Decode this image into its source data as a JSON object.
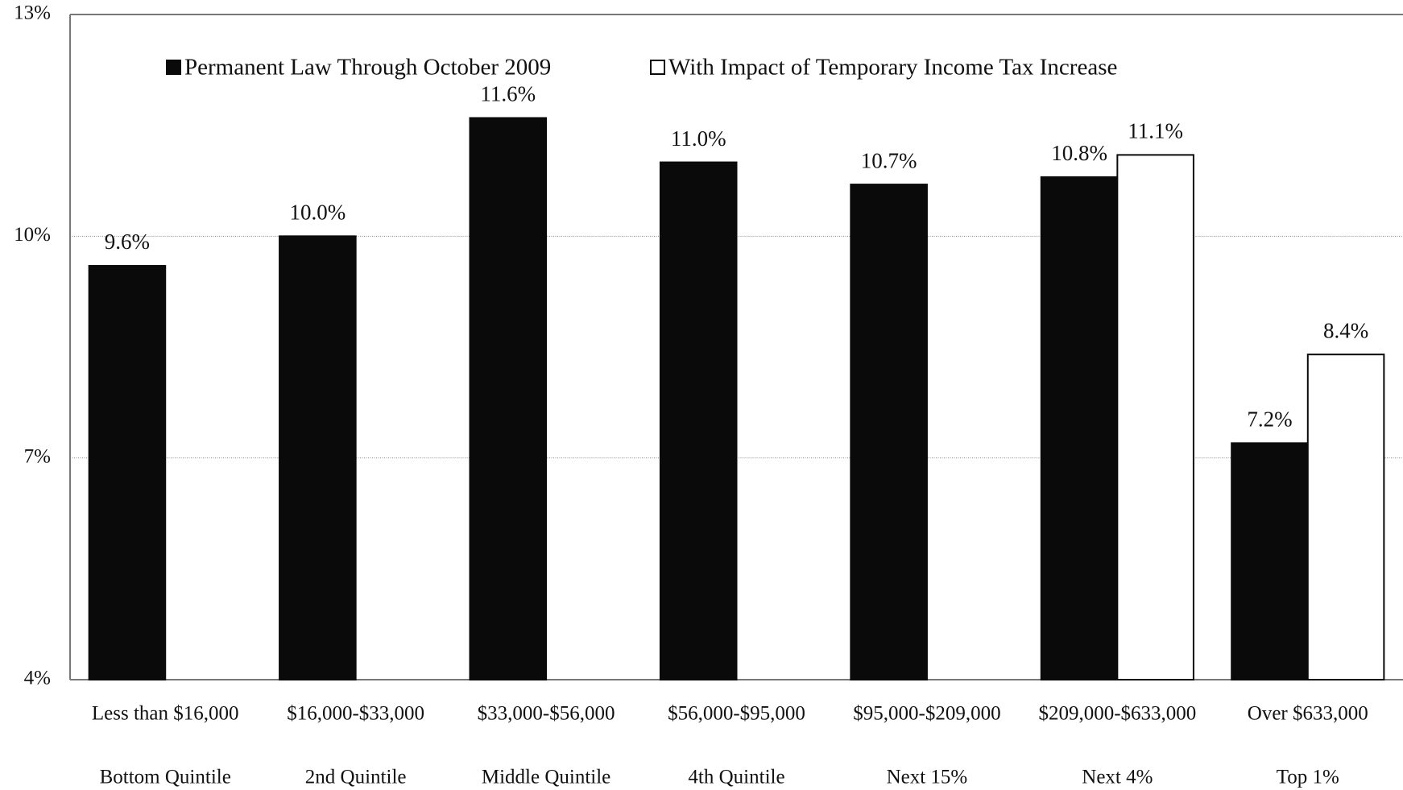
{
  "chart_data": {
    "type": "bar",
    "categories": [
      "Less than $16,000",
      "$16,000-$33,000",
      "$33,000-$56,000",
      "$56,000-$95,000",
      "$95,000-$209,000",
      "$209,000-$633,000",
      "Over $633,000"
    ],
    "category_groups": [
      "Bottom Quintile",
      "2nd Quintile",
      "Middle Quintile",
      "4th Quintile",
      "Next 15%",
      "Next 4%",
      "Top 1%"
    ],
    "series": [
      {
        "name": "Permanent Law Through October 2009",
        "color": "#0a0a0a",
        "values": [
          9.6,
          10.0,
          11.6,
          11.0,
          10.7,
          10.8,
          7.2
        ],
        "value_labels": [
          "9.6%",
          "10.0%",
          "11.6%",
          "11.0%",
          "10.7%",
          "10.8%",
          "7.2%"
        ]
      },
      {
        "name": "With Impact of Temporary Income Tax Increase",
        "color": "#ffffff",
        "values": [
          null,
          null,
          null,
          null,
          null,
          11.1,
          8.4
        ],
        "value_labels": [
          null,
          null,
          null,
          null,
          null,
          "11.1%",
          "8.4%"
        ]
      }
    ],
    "ylim": [
      4,
      13
    ],
    "yticks": [
      {
        "value": 4,
        "label": "4%"
      },
      {
        "value": 7,
        "label": "7%"
      },
      {
        "value": 10,
        "label": "10%"
      },
      {
        "value": 13,
        "label": "13%"
      }
    ],
    "grid": true,
    "legend": "top"
  }
}
